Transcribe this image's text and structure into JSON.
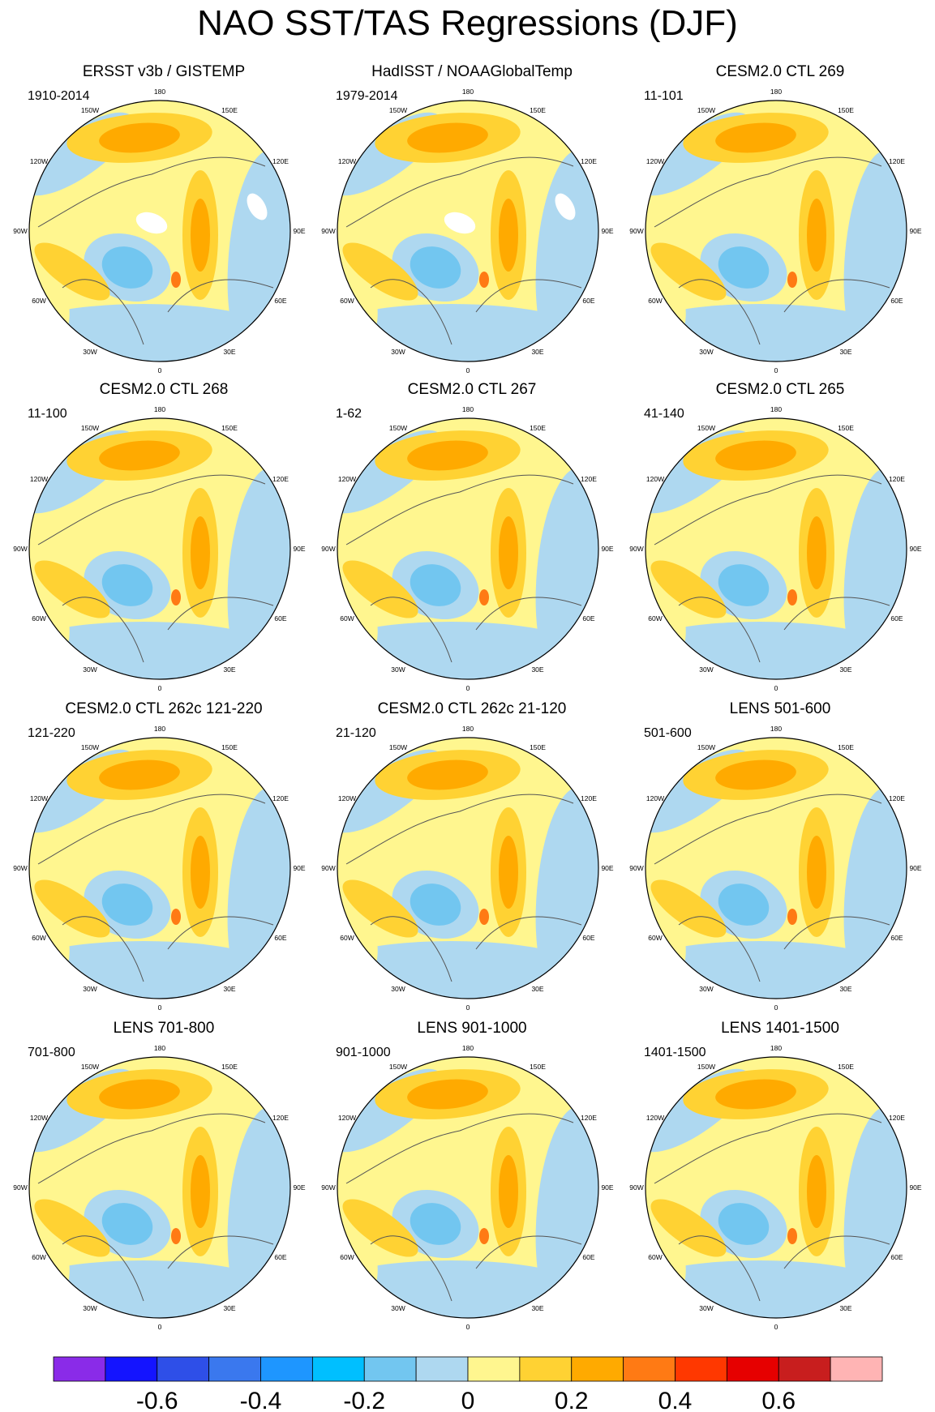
{
  "chart_data": {
    "type": "heatmap",
    "projection": "north polar stereographic",
    "title": "NAO SST/TAS Regressions (DJF)",
    "longitude_labels": [
      "180",
      "150E",
      "120E",
      "90E",
      "60E",
      "30E",
      "0",
      "30W",
      "60W",
      "90W",
      "120W",
      "150W"
    ],
    "colorbar": {
      "tick_labels": [
        "-0.6",
        "-0.4",
        "-0.2",
        "0",
        "0.2",
        "0.4",
        "0.6"
      ],
      "levels": [
        -0.7,
        -0.6,
        -0.5,
        -0.4,
        -0.3,
        -0.2,
        -0.1,
        0,
        0.1,
        0.2,
        0.3,
        0.4,
        0.5,
        0.6,
        0.7
      ],
      "colors": [
        "#8a2be8",
        "#1414ff",
        "#2e4fe8",
        "#3a78ee",
        "#1e96ff",
        "#00bfff",
        "#72c6f0",
        "#aed8f0",
        "#fff68f",
        "#ffd233",
        "#ffaa00",
        "#ff7a14",
        "#ff3800",
        "#e60000",
        "#c81e1e",
        "#ffb4b4"
      ]
    },
    "panels": [
      {
        "title": "ERSST v3b / GISTEMP",
        "period": "1910-2014",
        "missing": true
      },
      {
        "title": "HadISST / NOAAGlobalTemp",
        "period": "1979-2014",
        "missing": true
      },
      {
        "title": "CESM2.0 CTL 269",
        "period": "11-101"
      },
      {
        "title": "CESM2.0 CTL 268",
        "period": "11-100"
      },
      {
        "title": "CESM2.0 CTL 267",
        "period": "1-62"
      },
      {
        "title": "CESM2.0 CTL 265",
        "period": "41-140"
      },
      {
        "title": "CESM2.0 CTL 262c 121-220",
        "period": "121-220"
      },
      {
        "title": "CESM2.0 CTL 262c 21-120",
        "period": "21-120"
      },
      {
        "title": "LENS 501-600",
        "period": "501-600"
      },
      {
        "title": "LENS 701-800",
        "period": "701-800"
      },
      {
        "title": "LENS 901-1000",
        "period": "901-1000"
      },
      {
        "title": "LENS 1401-1500",
        "period": "1401-1500"
      }
    ]
  }
}
